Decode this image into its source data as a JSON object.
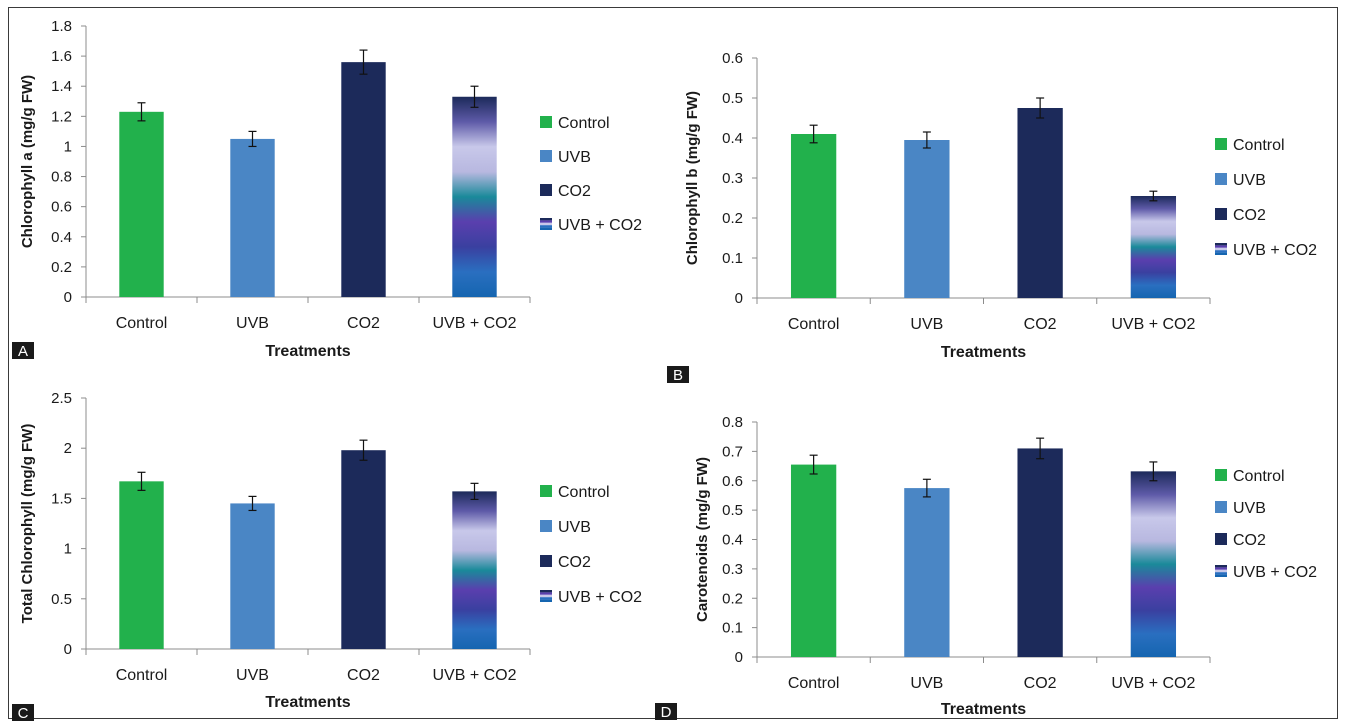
{
  "colors": {
    "control": "#22b14c",
    "uvb": "#4a86c5",
    "co2": "#1c2a5a",
    "mixed_stops": [
      "#1565b0",
      "#2a6fc0",
      "#3a40a0",
      "#5a3fae",
      "#1a8a9a",
      "#b8b8e0",
      "#c8c8ea",
      "#5e5aa8",
      "#1c2a5a"
    ],
    "axis": "#8c8c8c",
    "text": "#1a1a1a",
    "panel_label_bg": "#1a1a1a",
    "panel_label_fg": "#ffffff"
  },
  "chart_data": [
    {
      "panel_label": "A",
      "type": "bar",
      "categories": [
        "Control",
        "UVB",
        "CO2",
        "UVB + CO2"
      ],
      "values": [
        1.23,
        1.05,
        1.56,
        1.33
      ],
      "errors": [
        0.06,
        0.05,
        0.08,
        0.07
      ],
      "xlabel": "Treatments",
      "ylabel": "Chlorophyll a (mg/g FW)",
      "ylim": [
        0,
        1.8
      ],
      "yticks": [
        "0",
        "0.2",
        "0.4",
        "0.6",
        "0.8",
        "1",
        "1.2",
        "1.4",
        "1.6",
        "1.8"
      ],
      "legend": [
        "Control",
        "UVB",
        "CO2",
        "UVB + CO2"
      ],
      "legend_position": "right",
      "grid": false
    },
    {
      "panel_label": "B",
      "type": "bar",
      "categories": [
        "Control",
        "UVB",
        "CO2",
        "UVB + CO2"
      ],
      "values": [
        0.41,
        0.395,
        0.475,
        0.255
      ],
      "errors": [
        0.022,
        0.02,
        0.025,
        0.012
      ],
      "xlabel": "Treatments",
      "ylabel": "Chlorophyll b (mg/g FW)",
      "ylim": [
        0,
        0.6
      ],
      "yticks": [
        "0",
        "0.1",
        "0.2",
        "0.3",
        "0.4",
        "0.5",
        "0.6"
      ],
      "legend": [
        "Control",
        "UVB",
        "CO2",
        "UVB + CO2"
      ],
      "legend_position": "right",
      "grid": false
    },
    {
      "panel_label": "C",
      "type": "bar",
      "categories": [
        "Control",
        "UVB",
        "CO2",
        "UVB + CO2"
      ],
      "values": [
        1.67,
        1.45,
        1.98,
        1.57
      ],
      "errors": [
        0.09,
        0.07,
        0.1,
        0.08
      ],
      "xlabel": "Treatments",
      "ylabel": "Total Chlorophyll (mg/g FW)",
      "ylim": [
        0,
        2.5
      ],
      "yticks": [
        "0",
        "0.5",
        "1",
        "1.5",
        "2",
        "2.5"
      ],
      "legend": [
        "Control",
        "UVB",
        "CO2",
        "UVB + CO2"
      ],
      "legend_position": "right",
      "grid": false
    },
    {
      "panel_label": "D",
      "type": "bar",
      "categories": [
        "Control",
        "UVB",
        "CO2",
        "UVB + CO2"
      ],
      "values": [
        0.655,
        0.575,
        0.71,
        0.632
      ],
      "errors": [
        0.032,
        0.03,
        0.035,
        0.032
      ],
      "xlabel": "Treatments",
      "ylabel": "Carotenoids (mg/g FW)",
      "ylim": [
        0,
        0.8
      ],
      "yticks": [
        "0",
        "0.1",
        "0.2",
        "0.3",
        "0.4",
        "0.5",
        "0.6",
        "0.7",
        "0.8"
      ],
      "legend": [
        "Control",
        "UVB",
        "CO2",
        "UVB + CO2"
      ],
      "legend_position": "right",
      "grid": false
    }
  ]
}
